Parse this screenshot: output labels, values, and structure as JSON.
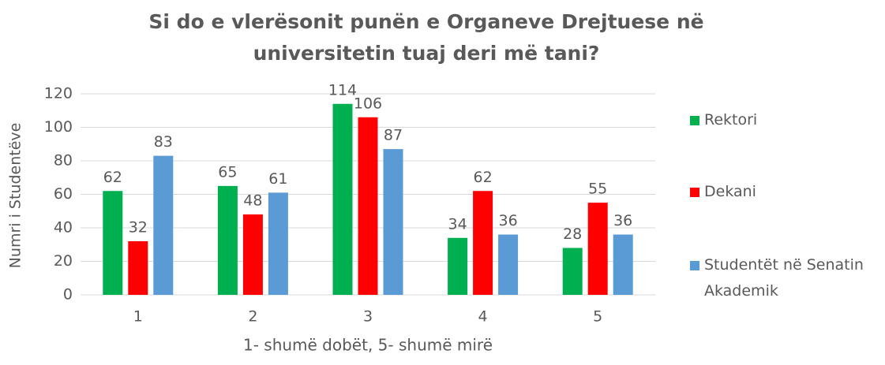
{
  "chart_data": {
    "type": "bar",
    "title": "Si do e vlerësonit punën e Organeve Drejtuese në universitetin tuaj deri më tani?",
    "x_label": "1- shumë dobët, 5- shumë mirë",
    "y_label": "Numri i Studentëve",
    "categories": [
      "1",
      "2",
      "3",
      "4",
      "5"
    ],
    "series": [
      {
        "name": "Rektori",
        "color": "#00b050",
        "values": [
          62,
          65,
          114,
          34,
          28
        ]
      },
      {
        "name": "Dekani",
        "color": "#ff0000",
        "values": [
          32,
          48,
          106,
          62,
          55
        ]
      },
      {
        "name": "Studentët në Senatin Akademik",
        "color": "#5b9bd5",
        "values": [
          83,
          61,
          87,
          36,
          36
        ]
      }
    ],
    "ylim": [
      0,
      120
    ],
    "yticks": [
      0,
      20,
      40,
      60,
      80,
      100,
      120
    ],
    "grid": true,
    "legend": "right"
  }
}
